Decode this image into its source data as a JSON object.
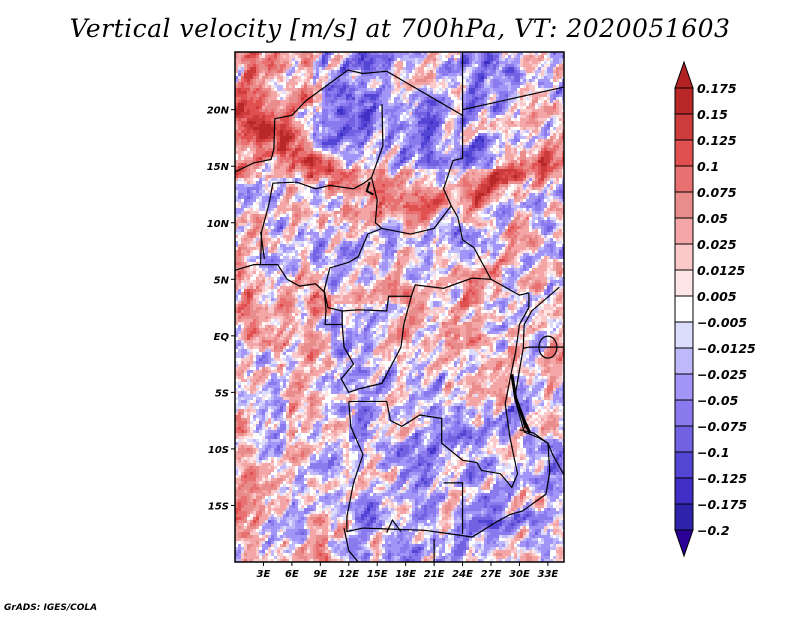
{
  "title": "Vertical velocity [m/s] at 700hPa, VT: 2020051603",
  "footer": "GrADS: IGES/COLA",
  "chart_data": {
    "type": "heatmap",
    "title": "Vertical velocity [m/s] at 700hPa, VT: 2020051603",
    "variable": "Vertical velocity",
    "units": "m/s",
    "level": "700hPa",
    "valid_time": "2020051603",
    "xlabel": "",
    "ylabel": "",
    "xlim": [
      0,
      34.7
    ],
    "ylim": [
      -20,
      25.1
    ],
    "x_ticks": [
      3,
      6,
      9,
      12,
      15,
      18,
      21,
      24,
      27,
      30,
      33
    ],
    "x_tick_labels": [
      "3E",
      "6E",
      "9E",
      "12E",
      "15E",
      "18E",
      "21E",
      "24E",
      "27E",
      "30E",
      "33E"
    ],
    "y_ticks": [
      20,
      15,
      10,
      5,
      0,
      -5,
      -10,
      -15
    ],
    "y_tick_labels": [
      "20N",
      "15N",
      "10N",
      "5N",
      "EQ",
      "5S",
      "10S",
      "15S"
    ],
    "grid": false,
    "colorbar": {
      "placement": "right",
      "levels": [
        0.175,
        0.15,
        0.125,
        0.1,
        0.075,
        0.05,
        0.025,
        0.0125,
        0.005,
        -0.005,
        -0.0125,
        -0.025,
        -0.05,
        -0.075,
        -0.1,
        -0.125,
        -0.175,
        -0.2
      ],
      "labels": [
        "0.175",
        "0.15",
        "0.125",
        "0.1",
        "0.075",
        "0.05",
        "0.025",
        "0.0125",
        "0.005",
        "−0.005",
        "−0.0125",
        "−0.025",
        "−0.05",
        "−0.075",
        "−0.1",
        "−0.125",
        "−0.175",
        "−0.2"
      ],
      "top_arrow_color": "#b22222",
      "bottom_arrow_color": "#2a0096",
      "colors": [
        "#b92828",
        "#cc3c3c",
        "#e05050",
        "#e87070",
        "#e98c8c",
        "#f4a6a6",
        "#fac8c8",
        "#fee6e6",
        "#ffffff",
        "#dcdcfc",
        "#bfb8fa",
        "#a394f8",
        "#8a7aee",
        "#7262e2",
        "#5446d4",
        "#3f2fc4",
        "#2e22aa"
      ]
    },
    "features": "Alternating positive (red, ascent) and negative (blue, descent) vertical velocity over West/Central Africa; bands of strong positive values near 12-15N (Sahel) and along the Gulf of Guinea coast; predominantly negative over the Sahara (Niger/Chad) and central Angola/Zambia"
  }
}
